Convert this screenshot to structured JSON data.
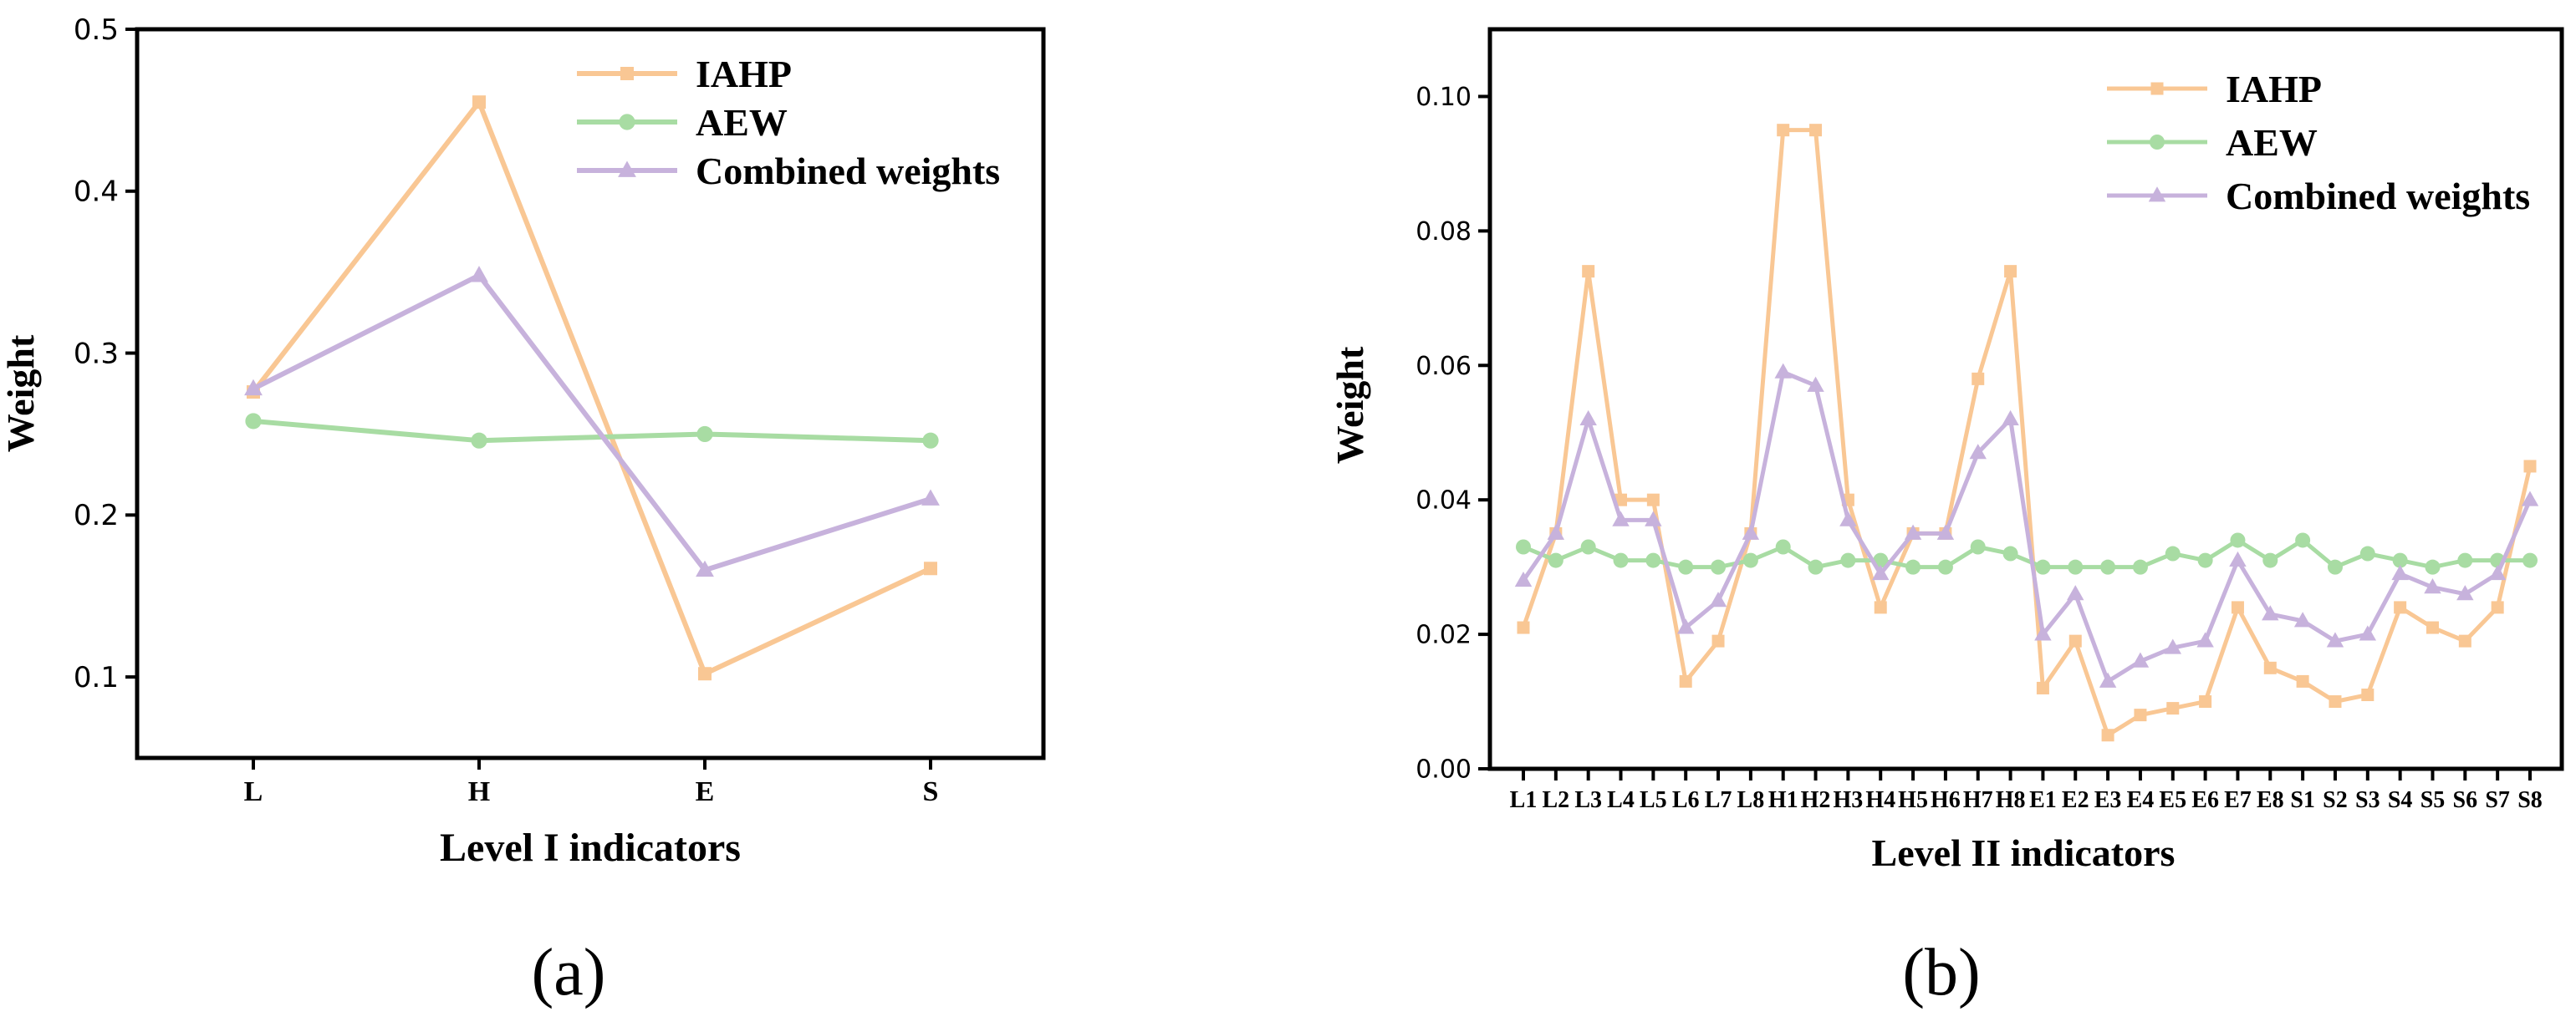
{
  "colors": {
    "IAHP": "#f9c794",
    "AEW": "#a8dca3",
    "Combined weights": "#c7b2dc",
    "axis": "#000000"
  },
  "chart_data": [
    {
      "type": "line",
      "panel_label": "(a)",
      "xlabel": "Level I indicators",
      "ylabel": "Weight",
      "ylim": [
        0.05,
        0.5
      ],
      "yticks": [
        0.1,
        0.2,
        0.3,
        0.4,
        0.5
      ],
      "ytick_labels": [
        "0.1",
        "0.2",
        "0.3",
        "0.4",
        "0.5"
      ],
      "categories": [
        "L",
        "H",
        "E",
        "S"
      ],
      "legend_position": "top-right",
      "series": [
        {
          "name": "IAHP",
          "marker": "square",
          "values": [
            0.276,
            0.455,
            0.102,
            0.167
          ]
        },
        {
          "name": "AEW",
          "marker": "circle",
          "values": [
            0.258,
            0.246,
            0.25,
            0.246
          ]
        },
        {
          "name": "Combined weights",
          "marker": "triangle",
          "values": [
            0.278,
            0.348,
            0.166,
            0.21
          ]
        }
      ]
    },
    {
      "type": "line",
      "panel_label": "(b)",
      "xlabel": "Level II indicators",
      "ylabel": "Weight",
      "ylim": [
        0,
        0.11
      ],
      "yticks": [
        0,
        0.02,
        0.04,
        0.06,
        0.08,
        0.1
      ],
      "ytick_labels": [
        "0.00",
        "0.02",
        "0.04",
        "0.06",
        "0.08",
        "0.10"
      ],
      "categories": [
        "L1",
        "L2",
        "L3",
        "L4",
        "L5",
        "L6",
        "L7",
        "L8",
        "H1",
        "H2",
        "H3",
        "H4",
        "H5",
        "H6",
        "H7",
        "H8",
        "E1",
        "E2",
        "E3",
        "E4",
        "E5",
        "E6",
        "E7",
        "E8",
        "S1",
        "S2",
        "S3",
        "S4",
        "S5",
        "S6",
        "S7",
        "S8"
      ],
      "legend_position": "top-right",
      "series": [
        {
          "name": "IAHP",
          "marker": "square",
          "values": [
            0.021,
            0.035,
            0.074,
            0.04,
            0.04,
            0.013,
            0.019,
            0.035,
            0.095,
            0.095,
            0.04,
            0.024,
            0.035,
            0.035,
            0.058,
            0.074,
            0.012,
            0.019,
            0.005,
            0.008,
            0.009,
            0.01,
            0.024,
            0.015,
            0.013,
            0.01,
            0.011,
            0.024,
            0.021,
            0.019,
            0.024,
            0.045
          ]
        },
        {
          "name": "AEW",
          "marker": "circle",
          "values": [
            0.033,
            0.031,
            0.033,
            0.031,
            0.031,
            0.03,
            0.03,
            0.031,
            0.033,
            0.03,
            0.031,
            0.031,
            0.03,
            0.03,
            0.033,
            0.032,
            0.03,
            0.03,
            0.03,
            0.03,
            0.032,
            0.031,
            0.034,
            0.031,
            0.034,
            0.03,
            0.032,
            0.031,
            0.03,
            0.031,
            0.031,
            0.031
          ]
        },
        {
          "name": "Combined weights",
          "marker": "triangle",
          "values": [
            0.028,
            0.035,
            0.052,
            0.037,
            0.037,
            0.021,
            0.025,
            0.035,
            0.059,
            0.057,
            0.037,
            0.029,
            0.035,
            0.035,
            0.047,
            0.052,
            0.02,
            0.026,
            0.013,
            0.016,
            0.018,
            0.019,
            0.031,
            0.023,
            0.022,
            0.019,
            0.02,
            0.029,
            0.027,
            0.026,
            0.029,
            0.04
          ]
        }
      ]
    }
  ]
}
